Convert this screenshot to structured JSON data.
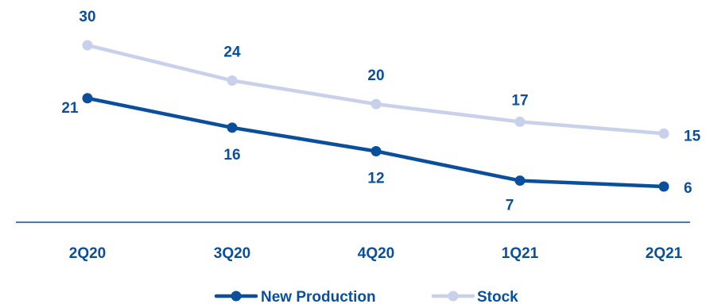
{
  "colors": {
    "new_production": "#0b4f9c",
    "stock": "#c9d0ec",
    "label_text": "#0b4f9c",
    "axis_line": "#0b4f9c"
  },
  "chart_data": {
    "type": "line",
    "categories": [
      "2Q20",
      "3Q20",
      "4Q20",
      "1Q21",
      "2Q21"
    ],
    "series": [
      {
        "name": "New Production",
        "values": [
          21,
          16,
          12,
          7,
          6
        ]
      },
      {
        "name": "Stock",
        "values": [
          30,
          24,
          20,
          17,
          15
        ]
      }
    ],
    "title": "",
    "xlabel": "",
    "ylabel": "",
    "grid": false,
    "legend_position": "bottom-center",
    "data_labels": true
  }
}
